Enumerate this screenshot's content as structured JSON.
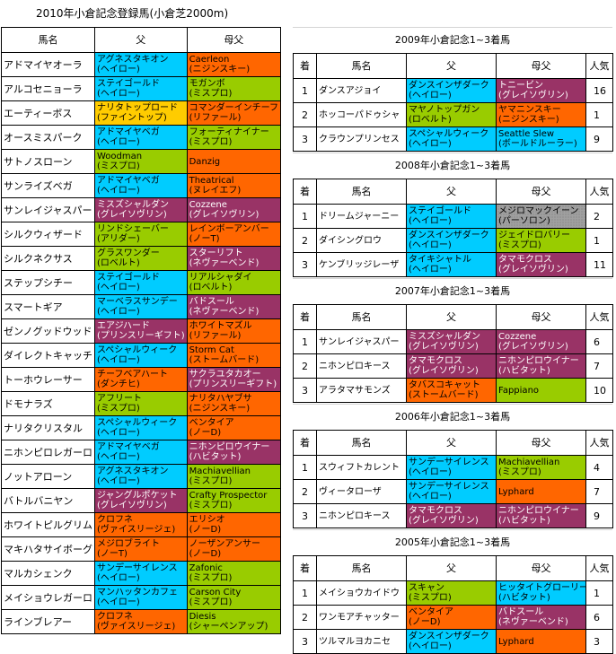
{
  "title": "2010年小倉記念登録馬(小倉芝2000m)",
  "colors": {
    "pink": "#993366",
    "blue": "#00ccff",
    "green": "#99cc00",
    "orange": "#ff6600",
    "yellow": "#ffcc00",
    "gray": "#a0a0a0"
  },
  "left": {
    "headers": [
      "馬名",
      "父",
      "母父"
    ],
    "rows": [
      {
        "name": "アドマイヤオーラ",
        "sire": [
          "アグネスタキオン",
          "(ヘイロー)"
        ],
        "sire_color": "blue",
        "dam_sire": [
          "Caerleon",
          "(ニジンスキー)"
        ],
        "dam_color": "orange"
      },
      {
        "name": "アルコセニョーラ",
        "sire": [
          "ステイゴールド",
          "(ヘイロー)"
        ],
        "sire_color": "blue",
        "dam_sire": [
          "モガンボ",
          "(ミスプロ)"
        ],
        "dam_color": "green"
      },
      {
        "name": "エーティーボス",
        "sire": [
          "ナリタトップロード",
          "(ファイントップ)"
        ],
        "sire_color": "yellow",
        "dam_sire": [
          "コマンダーインチーフ",
          "(リファール)"
        ],
        "dam_color": "orange"
      },
      {
        "name": "オースミスパーク",
        "sire": [
          "アドマイヤベガ",
          "(ヘイロー)"
        ],
        "sire_color": "blue",
        "dam_sire": [
          "フォーティナイナー",
          "(ミスプロ)"
        ],
        "dam_color": "green"
      },
      {
        "name": "サトノスローン",
        "sire": [
          "Woodman",
          "(ミスプロ)"
        ],
        "sire_color": "green",
        "dam_sire": [
          "Danzig"
        ],
        "dam_color": "orange"
      },
      {
        "name": "サンライズベガ",
        "sire": [
          "アドマイヤベガ",
          "(ヘイロー)"
        ],
        "sire_color": "blue",
        "dam_sire": [
          "Theatrical",
          "(ヌレイエフ)"
        ],
        "dam_color": "orange"
      },
      {
        "name": "サンレイジャスパー",
        "sire": [
          "ミスズシャルダン",
          "(グレイソヴリン)"
        ],
        "sire_color": "pink",
        "dam_sire": [
          "Cozzene",
          "(グレイソヴリン)"
        ],
        "dam_color": "pink"
      },
      {
        "name": "シルクウィザード",
        "sire": [
          "リンドシェーバー",
          "(アリダー)"
        ],
        "sire_color": "green",
        "dam_sire": [
          "レインボーアンバー",
          "(ノーT)"
        ],
        "dam_color": "orange"
      },
      {
        "name": "シルクネクサス",
        "sire": [
          "グラスワンダー",
          "(ロベルト)"
        ],
        "sire_color": "green",
        "dam_sire": [
          "スターリフト",
          "(ネヴァーベンド)"
        ],
        "dam_color": "pink"
      },
      {
        "name": "ステップシチー",
        "sire": [
          "ステイゴールド",
          "(ヘイロー)"
        ],
        "sire_color": "blue",
        "dam_sire": [
          "リアルシャダイ",
          "(ロベルト)"
        ],
        "dam_color": "green"
      },
      {
        "name": "スマートギア",
        "sire": [
          "マーベラスサンデー",
          "(ヘイロー)"
        ],
        "sire_color": "blue",
        "dam_sire": [
          "バドスール",
          "(ネヴァーベンド)"
        ],
        "dam_color": "pink"
      },
      {
        "name": "ゼンノグッドウッド",
        "sire": [
          "エアジハード",
          "(プリンスリーギフト)"
        ],
        "sire_color": "pink",
        "dam_sire": [
          "ホワイトマズル",
          "(リファール)"
        ],
        "dam_color": "orange"
      },
      {
        "name": "ダイレクトキャッチ",
        "sire": [
          "スペシャルウィーク",
          "(ヘイロー)"
        ],
        "sire_color": "blue",
        "dam_sire": [
          "Storm Cat",
          "(ストームバード)"
        ],
        "dam_color": "orange"
      },
      {
        "name": "トーホウレーサー",
        "sire": [
          "チーフベアハート",
          "(ダンチヒ)"
        ],
        "sire_color": "orange",
        "dam_sire": [
          "サクラユタカオー",
          "(プリンスリーギフト)"
        ],
        "dam_color": "pink"
      },
      {
        "name": "ドモナラズ",
        "sire": [
          "アフリート",
          "(ミスプロ)"
        ],
        "sire_color": "green",
        "dam_sire": [
          "ナリタハヤブサ",
          "(ニジンスキー)"
        ],
        "dam_color": "orange"
      },
      {
        "name": "ナリタクリスタル",
        "sire": [
          "スペシャルウィーク",
          "(ヘイロー)"
        ],
        "sire_color": "blue",
        "dam_sire": [
          "ベンタイア",
          "(ノーD)"
        ],
        "dam_color": "orange"
      },
      {
        "name": "ニホンピロレガーロ",
        "sire": [
          "アドマイヤベガ",
          "(ヘイロー)"
        ],
        "sire_color": "blue",
        "dam_sire": [
          "ニホンピロウイナー",
          "(ハビタット)"
        ],
        "dam_color": "pink"
      },
      {
        "name": "ノットアローン",
        "sire": [
          "アグネスタキオン",
          "(ヘイロー)"
        ],
        "sire_color": "blue",
        "dam_sire": [
          "Machiavellian",
          "(ミスプロ)"
        ],
        "dam_color": "green"
      },
      {
        "name": "バトルバニヤン",
        "sire": [
          "ジャングルポケット",
          "(グレイソヴリン)"
        ],
        "sire_color": "pink",
        "dam_sire": [
          "Crafty Prospector",
          "(ミスプロ)"
        ],
        "dam_color": "green"
      },
      {
        "name": "ホワイトピルグリム",
        "sire": [
          "クロフネ",
          "(ヴァイスリージェ)"
        ],
        "sire_color": "orange",
        "dam_sire": [
          "エリシオ",
          "(ノーD)"
        ],
        "dam_color": "orange"
      },
      {
        "name": "マキハタサイボーグ",
        "sire": [
          "メジロブライト",
          "(ノーT)"
        ],
        "sire_color": "orange",
        "dam_sire": [
          "ノーザンアンサー",
          "(ノーD)"
        ],
        "dam_color": "orange"
      },
      {
        "name": "マルカシェンク",
        "sire": [
          "サンデーサイレンス",
          "(ヘイロー)"
        ],
        "sire_color": "blue",
        "dam_sire": [
          "Zafonic",
          "(ミスプロ)"
        ],
        "dam_color": "green"
      },
      {
        "name": "メイショウレガーロ",
        "sire": [
          "マンハッタンカフェ",
          "(ヘイロー)"
        ],
        "sire_color": "blue",
        "dam_sire": [
          "Carson City",
          "(ミスプロ)"
        ],
        "dam_color": "green"
      },
      {
        "name": "ラインブレアー",
        "sire": [
          "クロフネ",
          "(ヴァイスリージェ)"
        ],
        "sire_color": "orange",
        "dam_sire": [
          "Diesis",
          "(シャーペンアップ)"
        ],
        "dam_color": "green"
      }
    ]
  },
  "right": {
    "headers": [
      "着",
      "馬名",
      "父",
      "母父",
      "人気"
    ],
    "sections": [
      {
        "title": "2009年小倉記念1~3着馬",
        "rows": [
          {
            "rank": "1",
            "name": "ダンスアジョイ",
            "sire": [
              "ダンスインザダーク",
              "(ヘイロー)"
            ],
            "sire_color": "blue",
            "dam_sire": [
              "トニービン",
              "(グレイソヴリン)"
            ],
            "dam_color": "pink",
            "pop": "16"
          },
          {
            "rank": "2",
            "name": "ホッコーパドゥシャ",
            "sire": [
              "マヤノトップガン",
              "(ロベルト)"
            ],
            "sire_color": "green",
            "dam_sire": [
              "ヤマニンスキー",
              "(ニジンスキー)"
            ],
            "dam_color": "orange",
            "pop": "1"
          },
          {
            "rank": "3",
            "name": "クラウンプリンセス",
            "sire": [
              "スペシャルウィーク",
              "(ヘイロー)"
            ],
            "sire_color": "blue",
            "dam_sire": [
              "Seattle Slew",
              "(ボールドルーラー)"
            ],
            "dam_color": "blue",
            "pop": "9"
          }
        ]
      },
      {
        "title": "2008年小倉記念1~3着馬",
        "rows": [
          {
            "rank": "1",
            "name": "ドリームジャーニー",
            "sire": [
              "ステイゴールド",
              "(ヘイロー)"
            ],
            "sire_color": "blue",
            "dam_sire": [
              "メジロマックイーン",
              "(パーソロン)"
            ],
            "dam_color": "gray",
            "pop": "2"
          },
          {
            "rank": "2",
            "name": "ダイシングロウ",
            "sire": [
              "ダンスインザダーク",
              "(ヘイロー)"
            ],
            "sire_color": "blue",
            "dam_sire": [
              "ジェイドロバリー",
              "(ミスプロ)"
            ],
            "dam_color": "green",
            "pop": "1"
          },
          {
            "rank": "3",
            "name": "ケンブリッジレーザ",
            "sire": [
              "タイキシャトル",
              "(ヘイロー)"
            ],
            "sire_color": "blue",
            "dam_sire": [
              "タマモクロス",
              "(グレイソヴリン)"
            ],
            "dam_color": "pink",
            "pop": "11"
          }
        ]
      },
      {
        "title": "2007年小倉記念1~3着馬",
        "rows": [
          {
            "rank": "1",
            "name": "サンレイジャスパー",
            "sire": [
              "ミスズシャルダン",
              "(グレイソヴリン)"
            ],
            "sire_color": "pink",
            "dam_sire": [
              "Cozzene",
              "(グレイソヴリン)"
            ],
            "dam_color": "pink",
            "pop": "6"
          },
          {
            "rank": "2",
            "name": "ニホンピロキース",
            "sire": [
              "タマモクロス",
              "(グレイソヴリン)"
            ],
            "sire_color": "pink",
            "dam_sire": [
              "ニホンピロウイナー",
              "(ハビタット)"
            ],
            "dam_color": "pink",
            "pop": "7"
          },
          {
            "rank": "3",
            "name": "アラタマサモンズ",
            "sire": [
              "タバスコキャット",
              "(ストームバード)"
            ],
            "sire_color": "orange",
            "dam_sire": [
              "Fappiano"
            ],
            "dam_color": "green",
            "pop": "10"
          }
        ]
      },
      {
        "title": "2006年小倉記念1~3着馬",
        "rows": [
          {
            "rank": "1",
            "name": "スウィフトカレント",
            "sire": [
              "サンデーサイレンス",
              "(ヘイロー)"
            ],
            "sire_color": "blue",
            "dam_sire": [
              "Machiavellian",
              "(ミスプロ)"
            ],
            "dam_color": "green",
            "pop": "4"
          },
          {
            "rank": "2",
            "name": "ヴィータローザ",
            "sire": [
              "サンデーサイレンス",
              "(ヘイロー)"
            ],
            "sire_color": "blue",
            "dam_sire": [
              "Lyphard"
            ],
            "dam_color": "orange",
            "pop": "7"
          },
          {
            "rank": "3",
            "name": "ニホンピロキース",
            "sire": [
              "タマモクロス",
              "(グレイソヴリン)"
            ],
            "sire_color": "pink",
            "dam_sire": [
              "ニホンピロウイナー",
              "(ハビタット)"
            ],
            "dam_color": "pink",
            "pop": "9"
          }
        ]
      },
      {
        "title": "2005年小倉記念1~3着馬",
        "rows": [
          {
            "rank": "1",
            "name": "メイショウカイドウ",
            "sire": [
              "スキャン",
              "(ミスプロ)"
            ],
            "sire_color": "green",
            "dam_sire": [
              "ヒッタイトグローリー",
              "(ハビタット)"
            ],
            "dam_color": "blue",
            "pop": "1"
          },
          {
            "rank": "2",
            "name": "ワンモアチャッター",
            "sire": [
              "ベンタイア",
              "(ノーD)"
            ],
            "sire_color": "orange",
            "dam_sire": [
              "バドスール",
              "(ネヴァーベンド)"
            ],
            "dam_color": "pink",
            "pop": "6"
          },
          {
            "rank": "3",
            "name": "ツルマルヨカニセ",
            "sire": [
              "ダンスインザダーク",
              "(ヘイロー)"
            ],
            "sire_color": "blue",
            "dam_sire": [
              "Lyphard"
            ],
            "dam_color": "orange",
            "pop": "3"
          }
        ]
      }
    ]
  }
}
